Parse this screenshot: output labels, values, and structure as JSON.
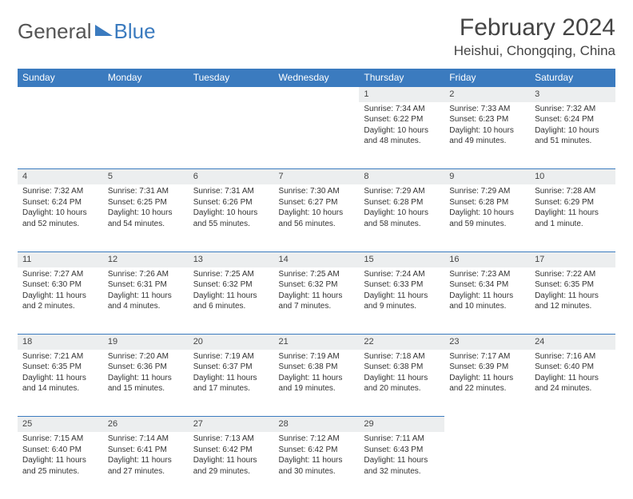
{
  "logo": {
    "text1": "General",
    "text2": "Blue"
  },
  "title": "February 2024",
  "location": "Heishui, Chongqing, China",
  "colors": {
    "header_bg": "#3b7bbf",
    "header_text": "#ffffff",
    "daynum_bg": "#eceeef",
    "border": "#3b7bbf",
    "body_text": "#333333"
  },
  "day_headers": [
    "Sunday",
    "Monday",
    "Tuesday",
    "Wednesday",
    "Thursday",
    "Friday",
    "Saturday"
  ],
  "weeks": [
    [
      null,
      null,
      null,
      null,
      {
        "n": "1",
        "sr": "7:34 AM",
        "ss": "6:22 PM",
        "dl": "10 hours and 48 minutes."
      },
      {
        "n": "2",
        "sr": "7:33 AM",
        "ss": "6:23 PM",
        "dl": "10 hours and 49 minutes."
      },
      {
        "n": "3",
        "sr": "7:32 AM",
        "ss": "6:24 PM",
        "dl": "10 hours and 51 minutes."
      }
    ],
    [
      {
        "n": "4",
        "sr": "7:32 AM",
        "ss": "6:24 PM",
        "dl": "10 hours and 52 minutes."
      },
      {
        "n": "5",
        "sr": "7:31 AM",
        "ss": "6:25 PM",
        "dl": "10 hours and 54 minutes."
      },
      {
        "n": "6",
        "sr": "7:31 AM",
        "ss": "6:26 PM",
        "dl": "10 hours and 55 minutes."
      },
      {
        "n": "7",
        "sr": "7:30 AM",
        "ss": "6:27 PM",
        "dl": "10 hours and 56 minutes."
      },
      {
        "n": "8",
        "sr": "7:29 AM",
        "ss": "6:28 PM",
        "dl": "10 hours and 58 minutes."
      },
      {
        "n": "9",
        "sr": "7:29 AM",
        "ss": "6:28 PM",
        "dl": "10 hours and 59 minutes."
      },
      {
        "n": "10",
        "sr": "7:28 AM",
        "ss": "6:29 PM",
        "dl": "11 hours and 1 minute."
      }
    ],
    [
      {
        "n": "11",
        "sr": "7:27 AM",
        "ss": "6:30 PM",
        "dl": "11 hours and 2 minutes."
      },
      {
        "n": "12",
        "sr": "7:26 AM",
        "ss": "6:31 PM",
        "dl": "11 hours and 4 minutes."
      },
      {
        "n": "13",
        "sr": "7:25 AM",
        "ss": "6:32 PM",
        "dl": "11 hours and 6 minutes."
      },
      {
        "n": "14",
        "sr": "7:25 AM",
        "ss": "6:32 PM",
        "dl": "11 hours and 7 minutes."
      },
      {
        "n": "15",
        "sr": "7:24 AM",
        "ss": "6:33 PM",
        "dl": "11 hours and 9 minutes."
      },
      {
        "n": "16",
        "sr": "7:23 AM",
        "ss": "6:34 PM",
        "dl": "11 hours and 10 minutes."
      },
      {
        "n": "17",
        "sr": "7:22 AM",
        "ss": "6:35 PM",
        "dl": "11 hours and 12 minutes."
      }
    ],
    [
      {
        "n": "18",
        "sr": "7:21 AM",
        "ss": "6:35 PM",
        "dl": "11 hours and 14 minutes."
      },
      {
        "n": "19",
        "sr": "7:20 AM",
        "ss": "6:36 PM",
        "dl": "11 hours and 15 minutes."
      },
      {
        "n": "20",
        "sr": "7:19 AM",
        "ss": "6:37 PM",
        "dl": "11 hours and 17 minutes."
      },
      {
        "n": "21",
        "sr": "7:19 AM",
        "ss": "6:38 PM",
        "dl": "11 hours and 19 minutes."
      },
      {
        "n": "22",
        "sr": "7:18 AM",
        "ss": "6:38 PM",
        "dl": "11 hours and 20 minutes."
      },
      {
        "n": "23",
        "sr": "7:17 AM",
        "ss": "6:39 PM",
        "dl": "11 hours and 22 minutes."
      },
      {
        "n": "24",
        "sr": "7:16 AM",
        "ss": "6:40 PM",
        "dl": "11 hours and 24 minutes."
      }
    ],
    [
      {
        "n": "25",
        "sr": "7:15 AM",
        "ss": "6:40 PM",
        "dl": "11 hours and 25 minutes."
      },
      {
        "n": "26",
        "sr": "7:14 AM",
        "ss": "6:41 PM",
        "dl": "11 hours and 27 minutes."
      },
      {
        "n": "27",
        "sr": "7:13 AM",
        "ss": "6:42 PM",
        "dl": "11 hours and 29 minutes."
      },
      {
        "n": "28",
        "sr": "7:12 AM",
        "ss": "6:42 PM",
        "dl": "11 hours and 30 minutes."
      },
      {
        "n": "29",
        "sr": "7:11 AM",
        "ss": "6:43 PM",
        "dl": "11 hours and 32 minutes."
      },
      null,
      null
    ]
  ],
  "labels": {
    "sunrise": "Sunrise:",
    "sunset": "Sunset:",
    "daylight": "Daylight:"
  }
}
